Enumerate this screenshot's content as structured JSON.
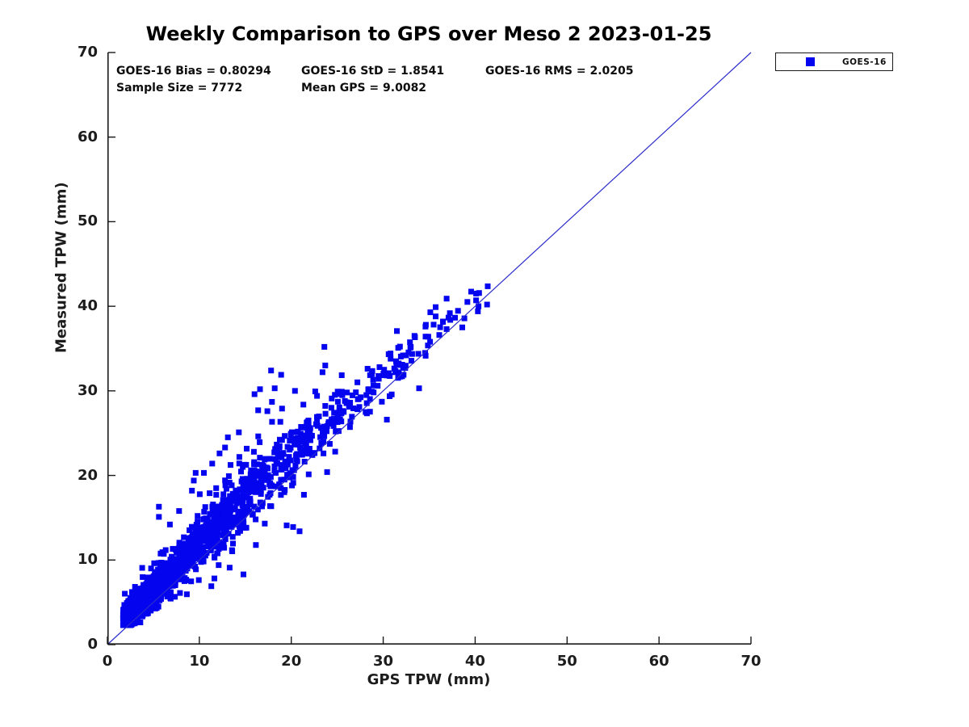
{
  "figure": {
    "title": "Weekly Comparison to GPS over Meso 2 2023-01-25",
    "background_color": "#ffffff",
    "axis_color": "#1a1a1a"
  },
  "stats": {
    "bias_label": "GOES-16 Bias = 0.80294",
    "std_label": "GOES-16 StD = 1.8541",
    "rms_label": "GOES-16 RMS = 2.0205",
    "sample_label": "Sample Size = 7772",
    "mean_gps_label": "Mean GPS = 9.0082"
  },
  "legend": {
    "position": "top-right-outside",
    "entries": [
      {
        "label": "GOES-16",
        "marker": "square",
        "marker_color": "#0404EE"
      }
    ]
  },
  "chart_data": {
    "type": "scatter",
    "title": "Weekly Comparison to GPS over Meso 2 2023-01-25",
    "xlabel": "GPS TPW (mm)",
    "ylabel": "Measured TPW (mm)",
    "xlim": [
      0,
      70
    ],
    "ylim": [
      0,
      70
    ],
    "x_ticks": [
      0,
      10,
      20,
      30,
      40,
      50,
      60,
      70
    ],
    "y_ticks": [
      0,
      10,
      20,
      30,
      40,
      50,
      60,
      70
    ],
    "grid": false,
    "reference_line": {
      "type": "identity",
      "from": [
        0,
        0
      ],
      "to": [
        70,
        70
      ],
      "color": "#2B2BCC",
      "width": 1.2
    },
    "series": [
      {
        "name": "GOES-16",
        "marker": "square",
        "marker_color": "#0404EE",
        "marker_size_px": 7,
        "sample_size": 7772,
        "bias": 0.80294,
        "std": 1.8541,
        "rms": 2.0205,
        "mean_gps": 9.0082,
        "density_clusters": [
          {
            "n": 540,
            "x_min": 1.7,
            "x_max": 8.5,
            "x_pow": 1.25,
            "bias": 1.4,
            "sd": 0.95,
            "seed": 11
          },
          {
            "n": 350,
            "x_min": 3.5,
            "x_max": 13.0,
            "x_pow": 1.1,
            "bias": 1.9,
            "sd": 1.45,
            "seed": 22
          },
          {
            "n": 215,
            "x_min": 8.5,
            "x_max": 17.0,
            "x_pow": 1.0,
            "bias": 2.2,
            "sd": 1.9,
            "seed": 33
          },
          {
            "n": 180,
            "x_min": 13.0,
            "x_max": 22.0,
            "x_pow": 1.0,
            "bias": 2.6,
            "sd": 2.1,
            "seed": 44
          },
          {
            "n": 85,
            "x_min": 18.0,
            "x_max": 26.5,
            "x_pow": 1.0,
            "bias": 2.0,
            "sd": 2.0,
            "seed": 55
          },
          {
            "n": 62,
            "x_min": 23.0,
            "x_max": 32.0,
            "x_pow": 1.0,
            "bias": 1.8,
            "sd": 1.6,
            "seed": 66
          },
          {
            "n": 36,
            "x_min": 28.5,
            "x_max": 36.0,
            "x_pow": 1.0,
            "bias": 1.7,
            "sd": 1.5,
            "seed": 77
          },
          {
            "n": 14,
            "x_min": 34.5,
            "x_max": 41.5,
            "x_pow": 1.0,
            "bias": 1.1,
            "sd": 1.2,
            "seed": 88
          }
        ],
        "outlier_points": [
          [
            5.6,
            16.3
          ],
          [
            5.6,
            15.1
          ],
          [
            6.8,
            14.2
          ],
          [
            7.8,
            15.8
          ],
          [
            9.4,
            19.4
          ],
          [
            9.2,
            18.2
          ],
          [
            9.6,
            20.3
          ],
          [
            10.5,
            20.3
          ],
          [
            11.4,
            21.4
          ],
          [
            12.2,
            22.6
          ],
          [
            12.8,
            23.3
          ],
          [
            13.1,
            24.5
          ],
          [
            14.3,
            25.1
          ],
          [
            16.0,
            29.6
          ],
          [
            16.6,
            30.2
          ],
          [
            16.4,
            27.7
          ],
          [
            17.8,
            32.4
          ],
          [
            18.9,
            31.9
          ],
          [
            18.2,
            30.3
          ],
          [
            17.4,
            27.6
          ],
          [
            17.9,
            28.7
          ],
          [
            19.0,
            27.9
          ],
          [
            20.4,
            30.0
          ],
          [
            22.8,
            29.4
          ],
          [
            23.6,
            35.2
          ],
          [
            23.7,
            33.0
          ],
          [
            23.4,
            32.2
          ],
          [
            24.4,
            29.1
          ],
          [
            25.5,
            29.9
          ],
          [
            11.3,
            6.9
          ],
          [
            12.1,
            9.4
          ],
          [
            13.3,
            9.1
          ],
          [
            14.8,
            8.3
          ],
          [
            20.9,
            13.4
          ],
          [
            20.2,
            13.9
          ],
          [
            19.5,
            14.1
          ],
          [
            23.9,
            20.4
          ],
          [
            33.9,
            30.3
          ],
          [
            30.4,
            26.6
          ],
          [
            34.9,
            36.4
          ],
          [
            35.7,
            39.9
          ],
          [
            35.7,
            38.8
          ],
          [
            36.5,
            38.2
          ],
          [
            36.9,
            40.9
          ],
          [
            36.9,
            37.3
          ],
          [
            38.6,
            37.5
          ],
          [
            40.1,
            41.5
          ],
          [
            40.1,
            40.7
          ],
          [
            40.3,
            39.4
          ],
          [
            41.3,
            40.2
          ],
          [
            35.1,
            35.8
          ],
          [
            33.4,
            36.5
          ],
          [
            34.6,
            37.6
          ],
          [
            33.0,
            35.2
          ],
          [
            32.5,
            34.2
          ],
          [
            31.4,
            33.5
          ],
          [
            30.8,
            33.8
          ],
          [
            30.1,
            32.5
          ],
          [
            29.4,
            30.6
          ],
          [
            28.4,
            30.2
          ],
          [
            27.4,
            28.1
          ],
          [
            26.4,
            28.6
          ],
          [
            25.5,
            27.5
          ],
          [
            36.1,
            36.6
          ]
        ]
      }
    ]
  }
}
